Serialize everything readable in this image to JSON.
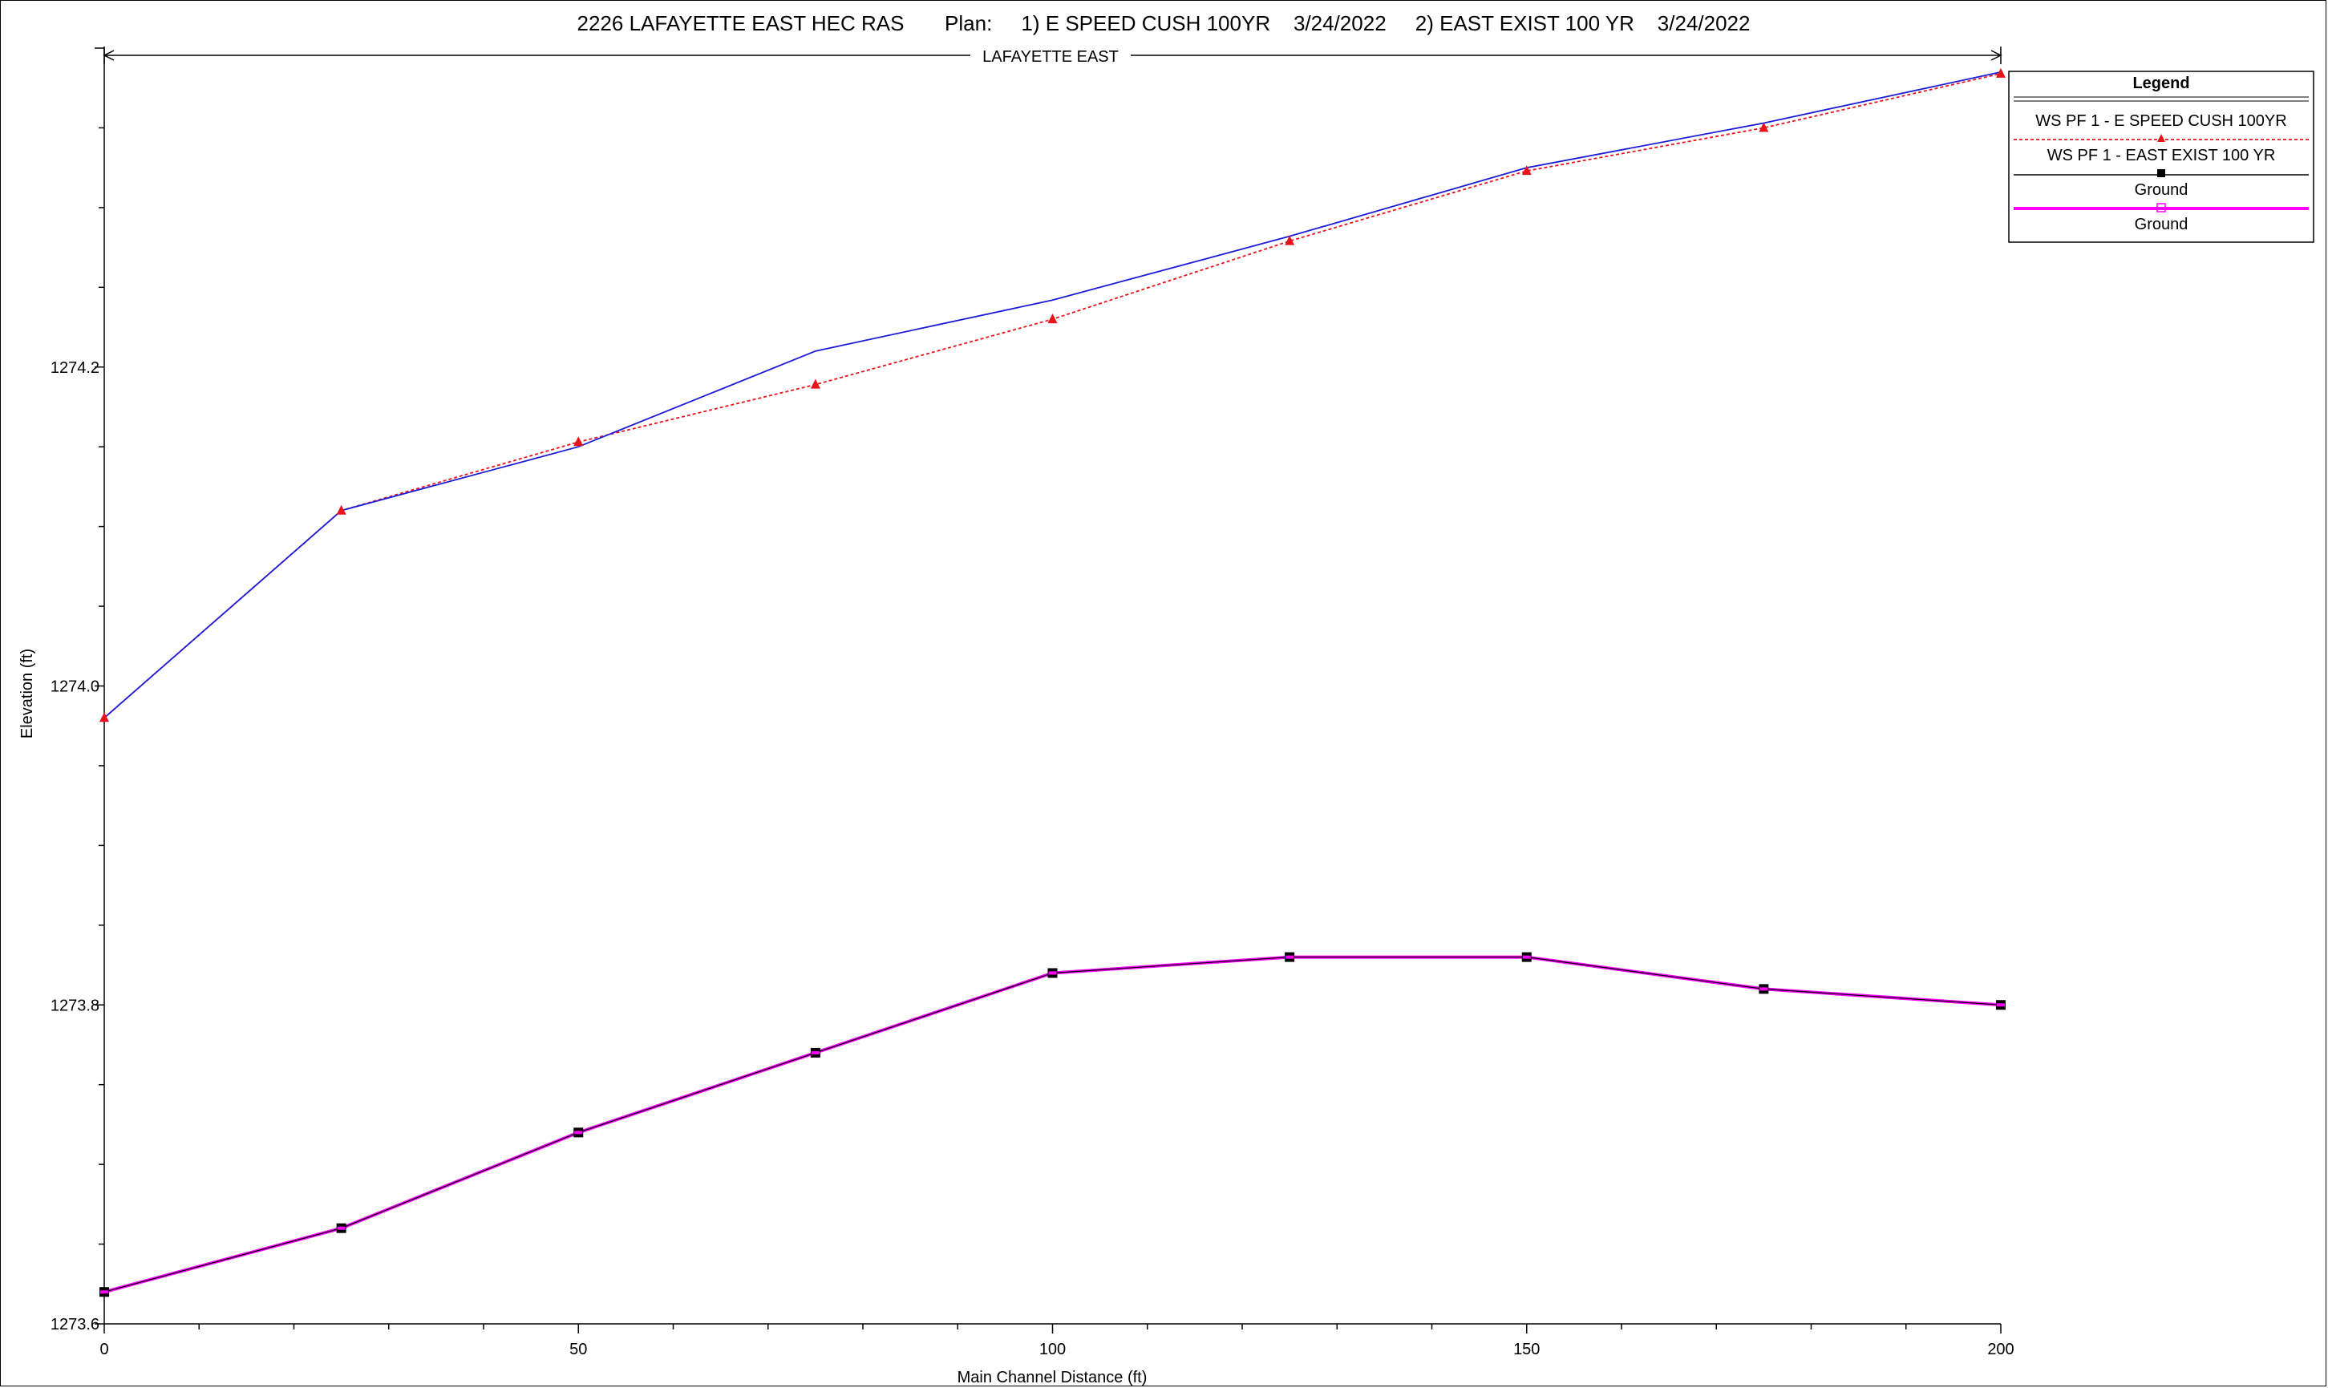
{
  "title": "2226 LAFAYETTE EAST HEC RAS       Plan:     1) E SPEED CUSH 100YR    3/24/2022     2) EAST EXIST 100 YR    3/24/2022",
  "reach_label": "LAFAYETTE EAST",
  "chart_data": {
    "type": "line",
    "xlabel": "Main Channel Distance (ft)",
    "ylabel": "Elevation (ft)",
    "xlim": [
      0,
      200
    ],
    "ylim": [
      1273.6,
      1274.4
    ],
    "x_ticks": [
      0,
      50,
      100,
      150,
      200
    ],
    "x_tick_labels": [
      "0",
      "50",
      "100",
      "150",
      "200"
    ],
    "y_ticks": [
      1273.6,
      1273.8,
      1274.0,
      1274.2
    ],
    "y_tick_labels": [
      "1273.6",
      "1273.8",
      "1274.0",
      "1274.2"
    ],
    "grid": false,
    "legend_position": "top-right",
    "legend_title": "Legend",
    "x": [
      0,
      25,
      50,
      75,
      100,
      125,
      150,
      175,
      200
    ],
    "series": [
      {
        "name": "WS  PF 1 - E SPEED CUSH 100YR",
        "color": "#e8141c",
        "style": "dotted",
        "marker": "triangle",
        "values": [
          1273.98,
          1274.11,
          1274.153,
          1274.189,
          1274.23,
          1274.279,
          1274.323,
          1274.35,
          1274.384
        ]
      },
      {
        "name": "WS  PF 1 - EAST EXIST 100 YR",
        "color": "#1c1cd8",
        "style": "solid",
        "marker": "none",
        "values": [
          1273.98,
          1274.11,
          1274.15,
          1274.21,
          1274.242,
          1274.282,
          1274.325,
          1274.353,
          1274.385
        ]
      },
      {
        "name": "Ground",
        "color": "#000000",
        "style": "solid",
        "marker": "square",
        "values": [
          1273.62,
          1273.66,
          1273.72,
          1273.77,
          1273.82,
          1273.83,
          1273.83,
          1273.81,
          1273.8
        ]
      },
      {
        "name": "Ground",
        "color": "#ff00ff",
        "style": "solid-thick",
        "marker": "square",
        "values": [
          1273.62,
          1273.66,
          1273.72,
          1273.77,
          1273.82,
          1273.83,
          1273.83,
          1273.81,
          1273.8
        ]
      }
    ]
  }
}
